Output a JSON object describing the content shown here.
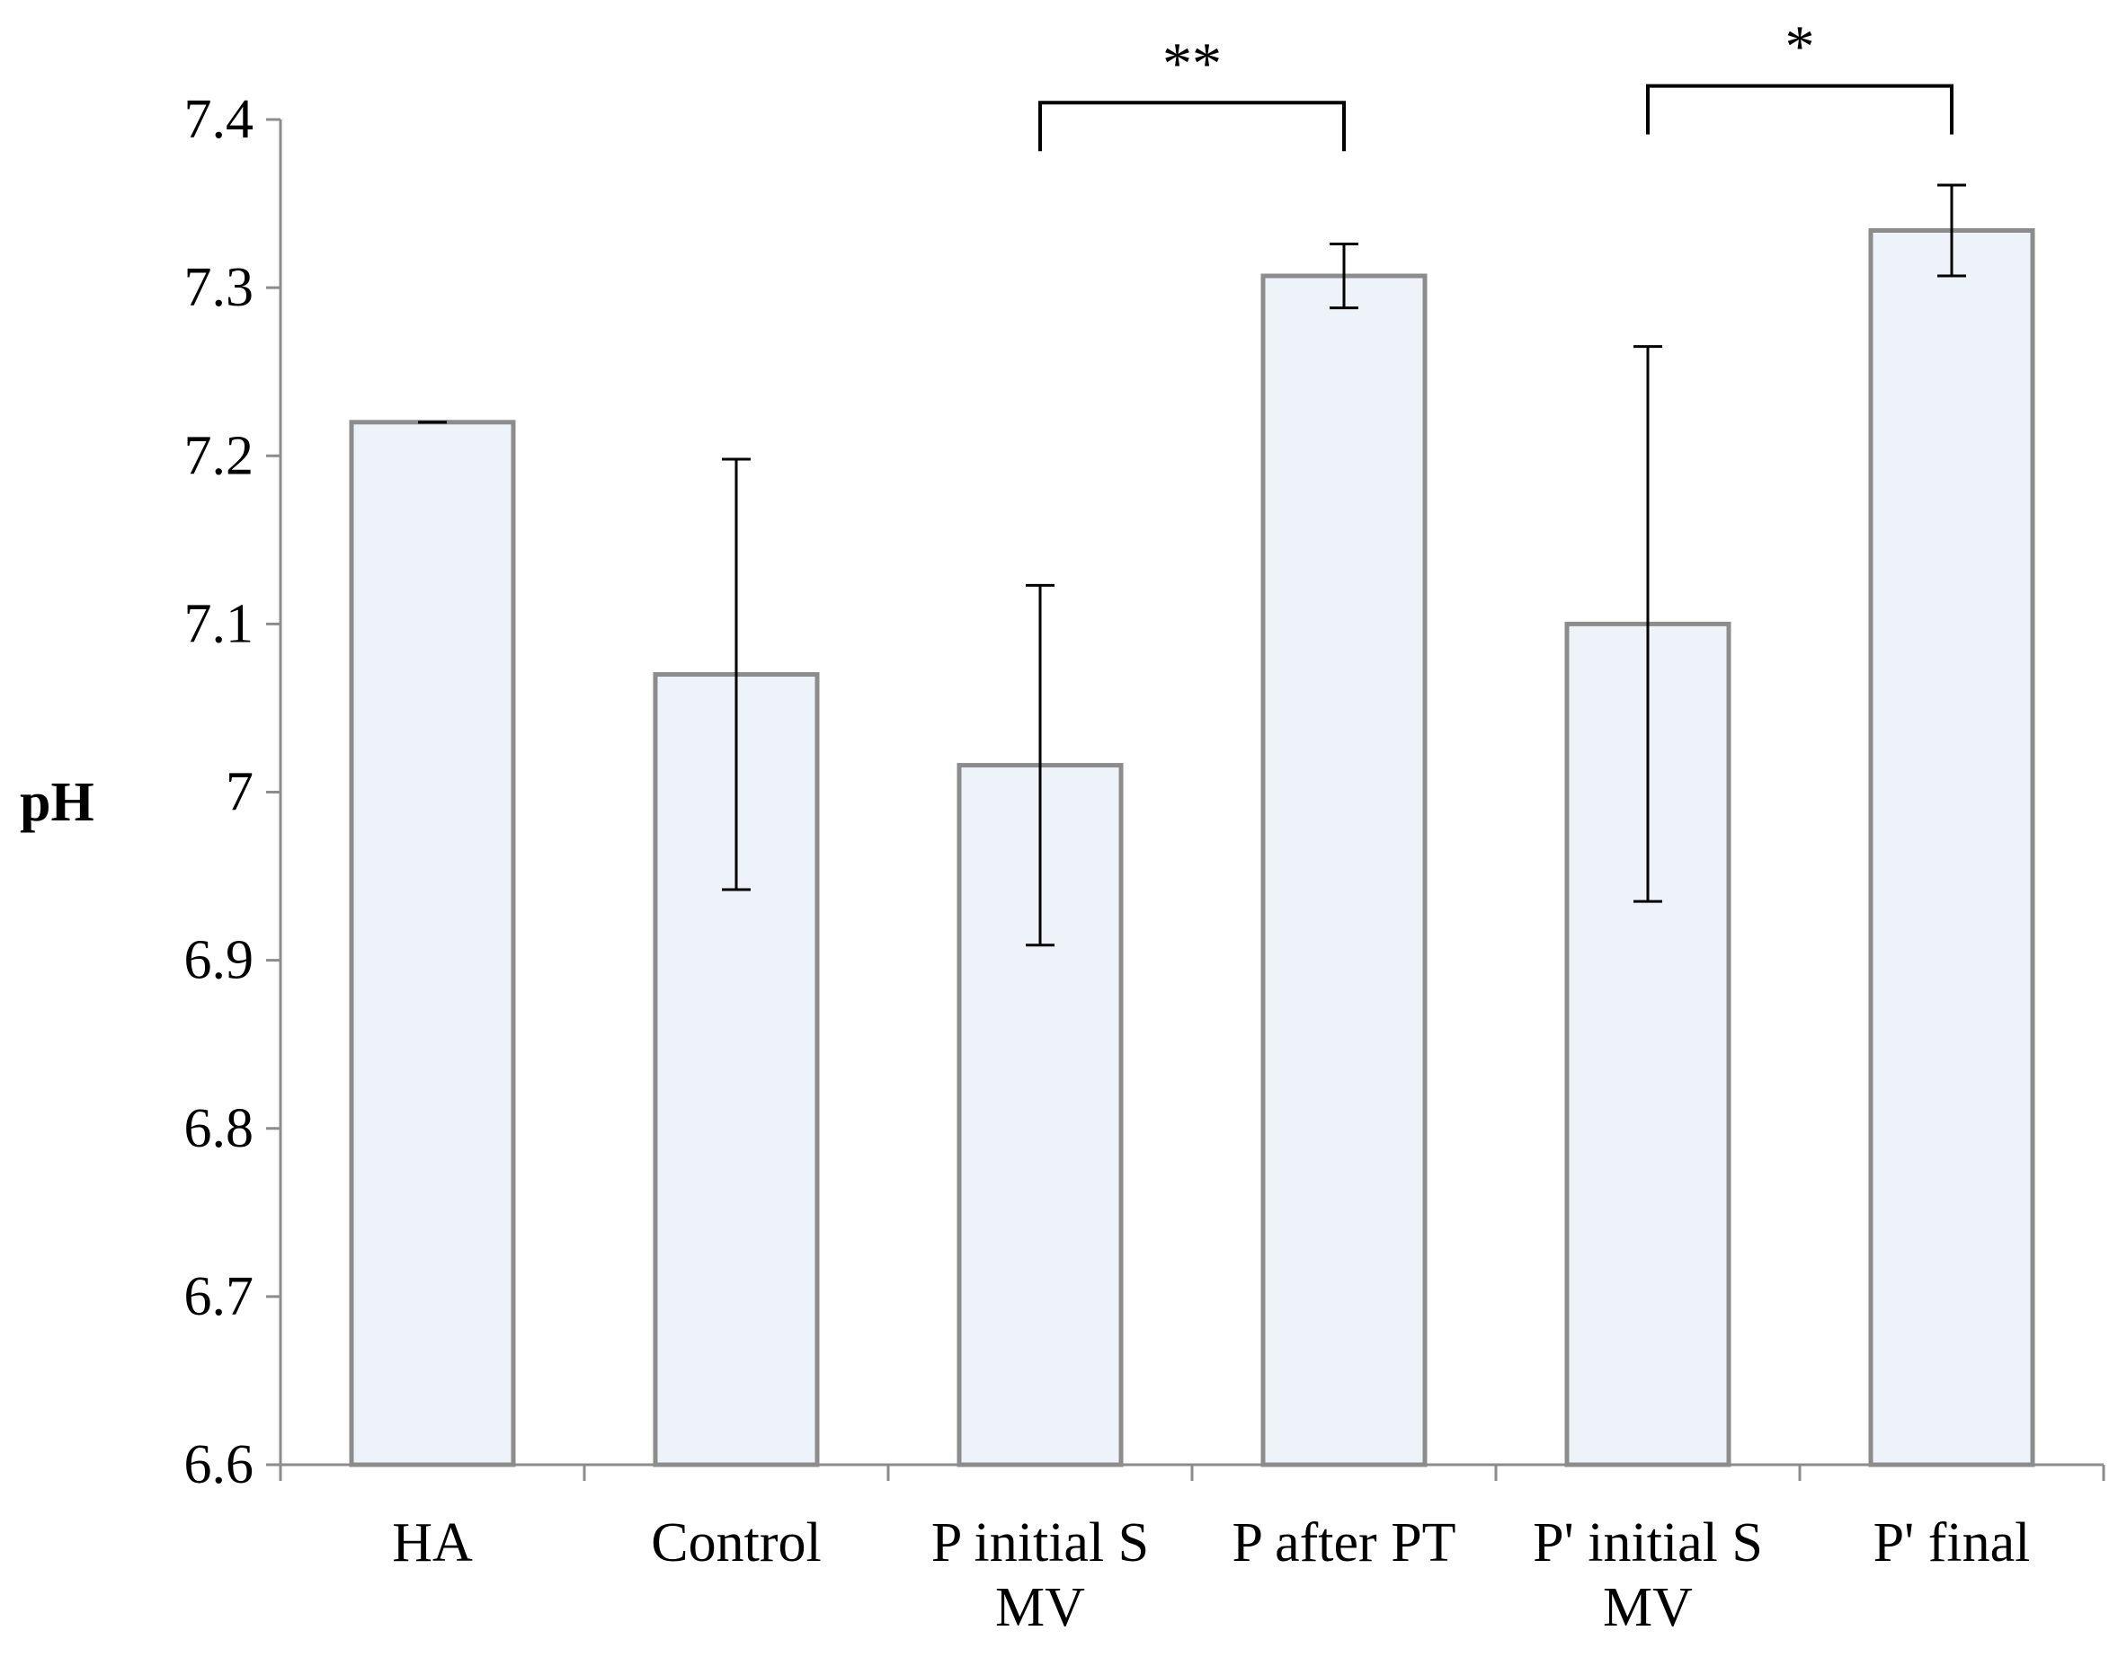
{
  "chart_data": {
    "type": "bar",
    "title": "",
    "xlabel": "",
    "ylabel": "pH",
    "ylim": [
      6.6,
      7.4
    ],
    "yticks": [
      6.6,
      6.7,
      6.8,
      6.9,
      7.0,
      7.1,
      7.2,
      7.3,
      7.4
    ],
    "ytick_labels": [
      "6.6",
      "6.7",
      "6.8",
      "6.9",
      "7",
      "7.1",
      "7.2",
      "7.3",
      "7.4"
    ],
    "categories": [
      [
        "HA"
      ],
      [
        "Control"
      ],
      [
        "P initial S",
        "MV"
      ],
      [
        "P after PT"
      ],
      [
        "P' initial S",
        "MV"
      ],
      [
        "P' final"
      ]
    ],
    "values": [
      7.22,
      7.07,
      7.016,
      7.307,
      7.1,
      7.334
    ],
    "errors": [
      0.0,
      0.128,
      0.107,
      0.019,
      0.165,
      0.027
    ],
    "grid": false,
    "bar_color": "#eef3fa",
    "bar_edge_color": "#8c8c8c",
    "axis_color": "#8c8c8c",
    "error_color": "#000000",
    "significance": [
      {
        "from": 2,
        "to": 3,
        "label": "**",
        "level": 7.41
      },
      {
        "from": 4,
        "to": 5,
        "label": "*",
        "level": 7.42
      }
    ]
  }
}
